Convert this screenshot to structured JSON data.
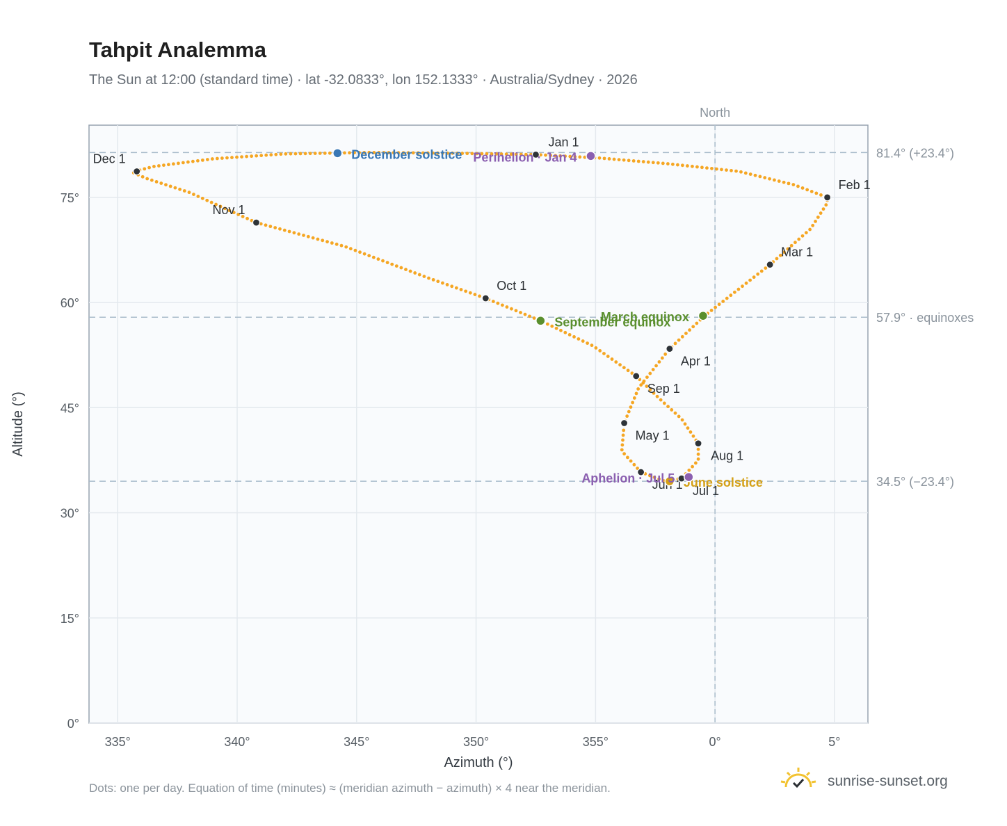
{
  "title": "Tahpit Analemma",
  "subtitle": "The Sun at 12:00 (standard time) · lat -32.0833°, lon 152.1333° · Australia/Sydney · 2026",
  "footnote": "Dots: one per day. Equation of time (minutes) ≈ (meridian azimuth − azimuth) × 4 near the meridian.",
  "brand": "sunrise-sunset.org",
  "colors": {
    "path": "#f5a623",
    "month": "#2e3338",
    "december_solstice": "#3a78b5",
    "june_solstice": "#d4a017",
    "equinox": "#5a8f2e",
    "perihelion": "#8b5fb0",
    "grid": "#e4e9ee",
    "plot_bg": "#f9fbfd"
  },
  "chart_data": {
    "type": "scatter",
    "xlabel": "Azimuth (°)",
    "ylabel": "Altitude (°)",
    "xlim": [
      333.8,
      6.4
    ],
    "ylim": [
      0,
      85.3
    ],
    "x_ticks": [
      "335°",
      "340°",
      "345°",
      "350°",
      "355°",
      "0°",
      "5°"
    ],
    "x_tick_values": [
      335,
      340,
      345,
      350,
      355,
      360,
      365
    ],
    "y_ticks": [
      "0°",
      "15°",
      "30°",
      "45°",
      "60°",
      "75°"
    ],
    "y_tick_values": [
      0,
      15,
      30,
      45,
      60,
      75
    ],
    "grid": true,
    "north_line": {
      "azimuth": 360,
      "label": "North"
    },
    "reference_lines": [
      {
        "altitude": 81.4,
        "label": "81.4° (+23.4°)"
      },
      {
        "altitude": 57.9,
        "label": "57.9° · equinoxes"
      },
      {
        "altitude": 34.5,
        "label": "34.5° (−23.4°)"
      }
    ],
    "months": [
      {
        "label": "Jan 1",
        "az": 352.5,
        "alt": 81.1
      },
      {
        "label": "Feb 1",
        "az": 364.7,
        "alt": 75.0
      },
      {
        "label": "Mar 1",
        "az": 362.3,
        "alt": 65.4
      },
      {
        "label": "Apr 1",
        "az": 358.1,
        "alt": 53.4
      },
      {
        "label": "May 1",
        "az": 356.2,
        "alt": 42.8
      },
      {
        "label": "Jun 1",
        "az": 356.9,
        "alt": 35.8
      },
      {
        "label": "Jul 1",
        "az": 358.6,
        "alt": 34.9
      },
      {
        "label": "Aug 1",
        "az": 359.3,
        "alt": 39.9
      },
      {
        "label": "Sep 1",
        "az": 356.7,
        "alt": 49.5
      },
      {
        "label": "Oct 1",
        "az": 350.4,
        "alt": 60.6
      },
      {
        "label": "Nov 1",
        "az": 340.8,
        "alt": 71.4
      },
      {
        "label": "Dec 1",
        "az": 335.8,
        "alt": 78.7
      }
    ],
    "events": [
      {
        "label": "December solstice",
        "az": 344.2,
        "alt": 81.3,
        "color_key": "december_solstice"
      },
      {
        "label": "Perihelion · Jan 4",
        "az": 354.8,
        "alt": 80.9,
        "color_key": "perihelion"
      },
      {
        "label": "March equinox",
        "az": 359.5,
        "alt": 58.1,
        "color_key": "equinox"
      },
      {
        "label": "September equinox",
        "az": 352.7,
        "alt": 57.4,
        "color_key": "equinox"
      },
      {
        "label": "June solstice",
        "az": 358.1,
        "alt": 34.5,
        "color_key": "june_solstice"
      },
      {
        "label": "Aphelion · Jul 5",
        "az": 358.9,
        "alt": 35.1,
        "color_key": "perihelion"
      }
    ],
    "path": [
      [
        352.5,
        81.1
      ],
      [
        349.0,
        81.3
      ],
      [
        345.5,
        81.4
      ],
      [
        342.0,
        81.2
      ],
      [
        339.0,
        80.5
      ],
      [
        336.5,
        79.4
      ],
      [
        335.6,
        78.6
      ],
      [
        336.2,
        77.7
      ],
      [
        338.0,
        75.7
      ],
      [
        340.8,
        71.4
      ],
      [
        344.5,
        68.0
      ],
      [
        348.0,
        63.5
      ],
      [
        350.4,
        60.6
      ],
      [
        352.7,
        57.4
      ],
      [
        354.9,
        53.8
      ],
      [
        356.7,
        49.5
      ],
      [
        357.7,
        46.2
      ],
      [
        358.6,
        43.4
      ],
      [
        359.3,
        39.9
      ],
      [
        359.3,
        37.5
      ],
      [
        358.6,
        34.9
      ],
      [
        357.9,
        34.5
      ],
      [
        356.9,
        35.8
      ],
      [
        356.1,
        38.8
      ],
      [
        356.2,
        42.8
      ],
      [
        356.8,
        47.8
      ],
      [
        358.1,
        53.4
      ],
      [
        359.6,
        58.2
      ],
      [
        362.3,
        65.4
      ],
      [
        364.0,
        70.5
      ],
      [
        364.7,
        74.2
      ],
      [
        364.7,
        75.0
      ],
      [
        363.3,
        76.8
      ],
      [
        361.0,
        78.7
      ],
      [
        358.0,
        79.8
      ],
      [
        355.2,
        80.6
      ],
      [
        352.5,
        81.1
      ]
    ]
  }
}
